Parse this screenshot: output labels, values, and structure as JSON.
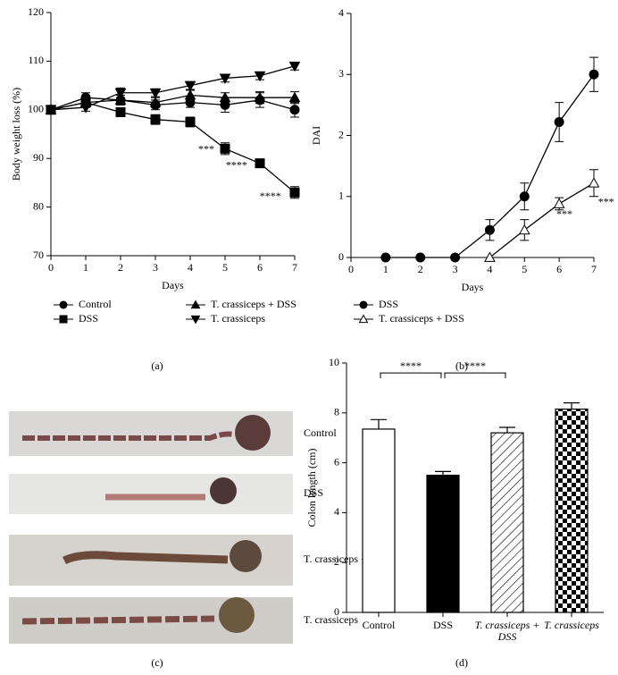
{
  "chart_data": [
    {
      "type": "line",
      "xlabel": "Days",
      "ylabel": "Body weight loss (%)",
      "caption": "(a)",
      "x": [
        0,
        1,
        2,
        3,
        4,
        5,
        6,
        7
      ],
      "xlim": [
        0,
        7
      ],
      "xticks": [
        0,
        1,
        2,
        3,
        4,
        5,
        6,
        7
      ],
      "ylim": [
        70,
        120
      ],
      "yticks": [
        70,
        80,
        90,
        100,
        110,
        120
      ],
      "series": [
        {
          "name": "Control",
          "color": "#000000",
          "marker": "circle",
          "values": [
            100,
            102.5,
            102,
            101,
            101.5,
            101,
            102,
            100
          ],
          "errors": [
            0,
            1,
            1,
            1,
            1,
            1.5,
            1.5,
            1.5
          ]
        },
        {
          "name": "DSS",
          "color": "#000000",
          "marker": "square",
          "values": [
            100,
            101.5,
            99.5,
            98,
            97.5,
            92,
            89,
            83
          ],
          "errors": [
            0,
            1,
            0.8,
            1,
            1,
            1.2,
            0.8,
            1.2
          ]
        },
        {
          "name": "T. crassiceps + DSS",
          "color": "#000000",
          "marker": "triangle-up",
          "values": [
            100,
            101.5,
            102,
            101.5,
            103,
            102.5,
            102.5,
            102.5
          ],
          "errors": [
            0,
            1,
            1,
            1,
            1,
            1,
            1.2,
            1.2
          ]
        },
        {
          "name": "T. crassiceps",
          "color": "#000000",
          "marker": "triangle-down",
          "values": [
            100,
            100.5,
            103.5,
            103.5,
            105,
            106.5,
            107,
            109
          ],
          "errors": [
            0,
            0.8,
            1,
            0.8,
            0.8,
            0.8,
            0.8,
            0.8
          ]
        }
      ],
      "annotations": [
        {
          "text": "***",
          "x": 4.46,
          "y": 91.7
        },
        {
          "text": "****",
          "x": 5.33,
          "y": 88.4
        },
        {
          "text": "****",
          "x": 6.3,
          "y": 82.1
        }
      ]
    },
    {
      "type": "line",
      "xlabel": "Days",
      "ylabel": "DAI",
      "caption": "(b)",
      "xlim": [
        0,
        7
      ],
      "xticks": [
        0,
        1,
        2,
        3,
        4,
        5,
        6,
        7
      ],
      "ylim": [
        0,
        4
      ],
      "yticks": [
        0,
        1,
        2,
        3,
        4
      ],
      "series": [
        {
          "name": "DSS",
          "color": "#000000",
          "marker": "circle",
          "x": [
            1,
            2,
            3,
            4,
            5,
            6,
            7
          ],
          "values": [
            0,
            0,
            0,
            0.45,
            1.0,
            2.22,
            3.0
          ],
          "errors": [
            0,
            0,
            0,
            0.17,
            0.22,
            0.32,
            0.28
          ]
        },
        {
          "name": "T. crassiceps + DSS",
          "color": "#000000",
          "marker": "triangle-open",
          "x": [
            4,
            5,
            6,
            7
          ],
          "values": [
            0,
            0.45,
            0.88,
            1.22
          ],
          "errors": [
            0,
            0.17,
            0.1,
            0.22
          ]
        }
      ],
      "annotations": [
        {
          "text": "***",
          "x": 6.15,
          "y": 0.7
        },
        {
          "text": "***",
          "x": 7.35,
          "y": 0.9
        }
      ]
    },
    {
      "type": "image",
      "caption": "(c)",
      "labels": [
        "Control",
        "DSS",
        "T. crassiceps + DSS",
        "T. crassiceps"
      ]
    },
    {
      "type": "bar",
      "ylabel": "Colon length (cm)",
      "caption": "(d)",
      "categories": [
        "Control",
        "DSS",
        "T. crassiceps + DSS",
        "T. crassiceps"
      ],
      "values": [
        7.35,
        5.5,
        7.2,
        8.15
      ],
      "errors": [
        0.38,
        0.15,
        0.22,
        0.25
      ],
      "fills": [
        "white",
        "black",
        "hatch",
        "checker"
      ],
      "ylim": [
        0,
        10
      ],
      "yticks": [
        0,
        2,
        4,
        6,
        8,
        10
      ],
      "brackets": [
        {
          "text": "****",
          "from": 0,
          "to": 1,
          "y": 9.6
        },
        {
          "text": "****",
          "from": 1,
          "to": 2,
          "y": 9.6
        }
      ]
    }
  ]
}
